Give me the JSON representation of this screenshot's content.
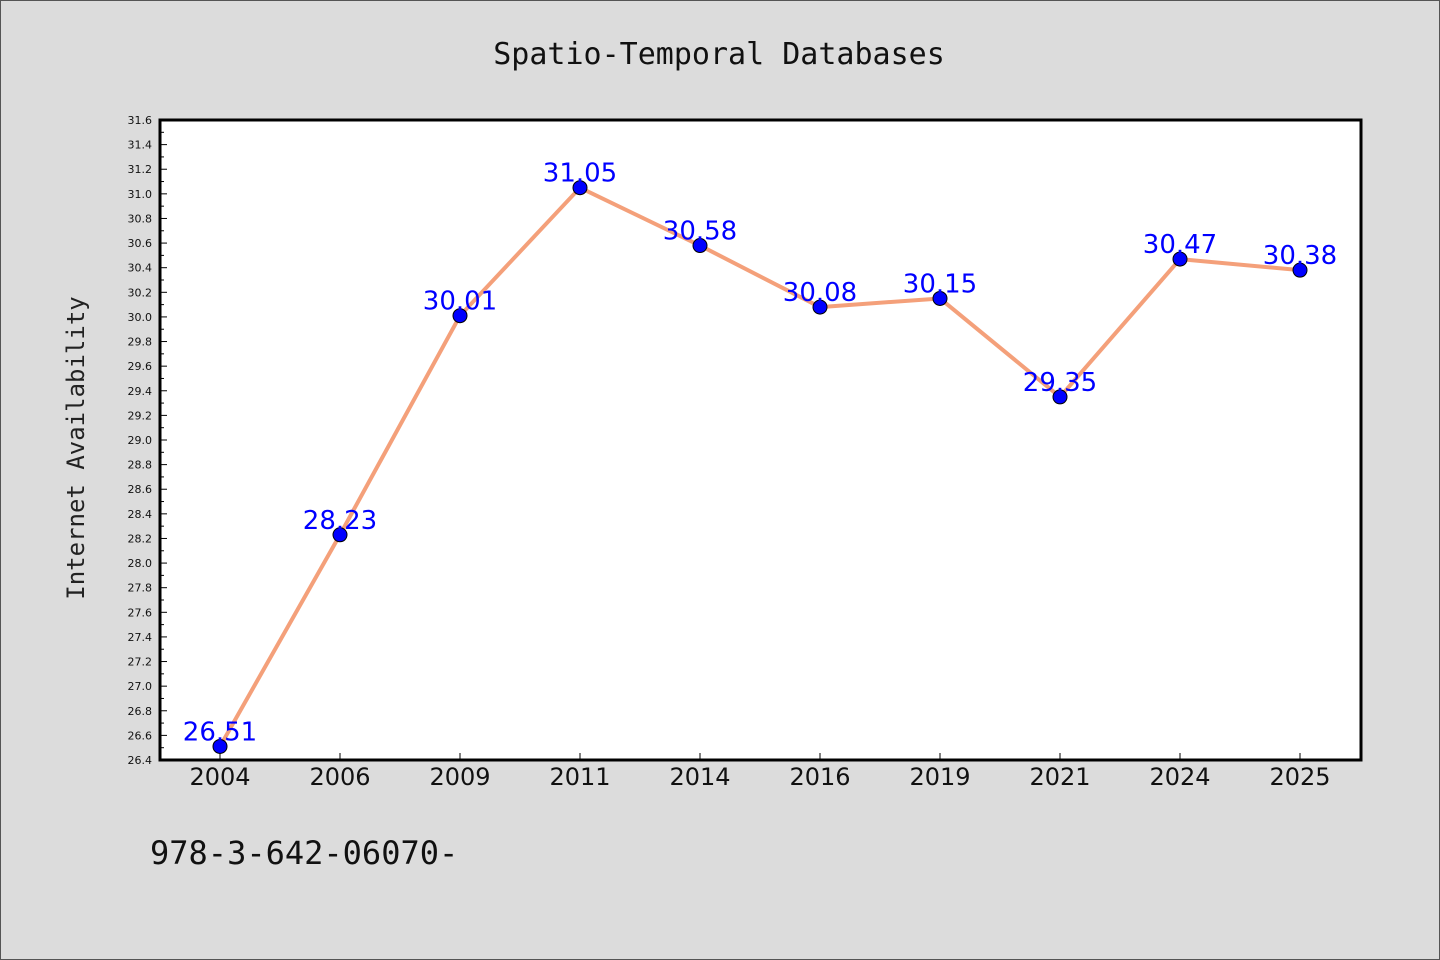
{
  "colors": {
    "background": "#dcdcdc",
    "plot_background": "#ffffff",
    "line": "#f4a07a",
    "marker": "#0000ff",
    "label": "#0000ff"
  },
  "footer": {
    "text": "978-3-642-06070-"
  },
  "chart_data": {
    "type": "line",
    "title": "Spatio-Temporal Databases",
    "xlabel": "",
    "ylabel": "Internet Availability",
    "categories": [
      "2004",
      "2006",
      "2009",
      "2011",
      "2014",
      "2016",
      "2019",
      "2021",
      "2024",
      "2025"
    ],
    "series": [
      {
        "values": [
          26.51,
          28.23,
          30.01,
          31.05,
          30.58,
          30.08,
          30.15,
          29.35,
          30.47,
          30.38
        ],
        "labels": [
          "26.51",
          "28.23",
          "30.01",
          "31.05",
          "30.58",
          "30.08",
          "30.15",
          "29.35",
          "30.47",
          "30.38"
        ]
      }
    ],
    "ylim": [
      26.4,
      31.6
    ],
    "yticks": [
      "26.4",
      "26.6",
      "26.8",
      "27.0",
      "27.2",
      "27.4",
      "27.6",
      "27.8",
      "28.0",
      "28.2",
      "28.4",
      "28.6",
      "28.8",
      "29.0",
      "29.2",
      "29.4",
      "29.6",
      "29.8",
      "30.0",
      "30.2",
      "30.4",
      "30.6",
      "30.8",
      "31.0",
      "31.2",
      "31.4",
      "31.6"
    ],
    "grid": false,
    "markers": true
  }
}
